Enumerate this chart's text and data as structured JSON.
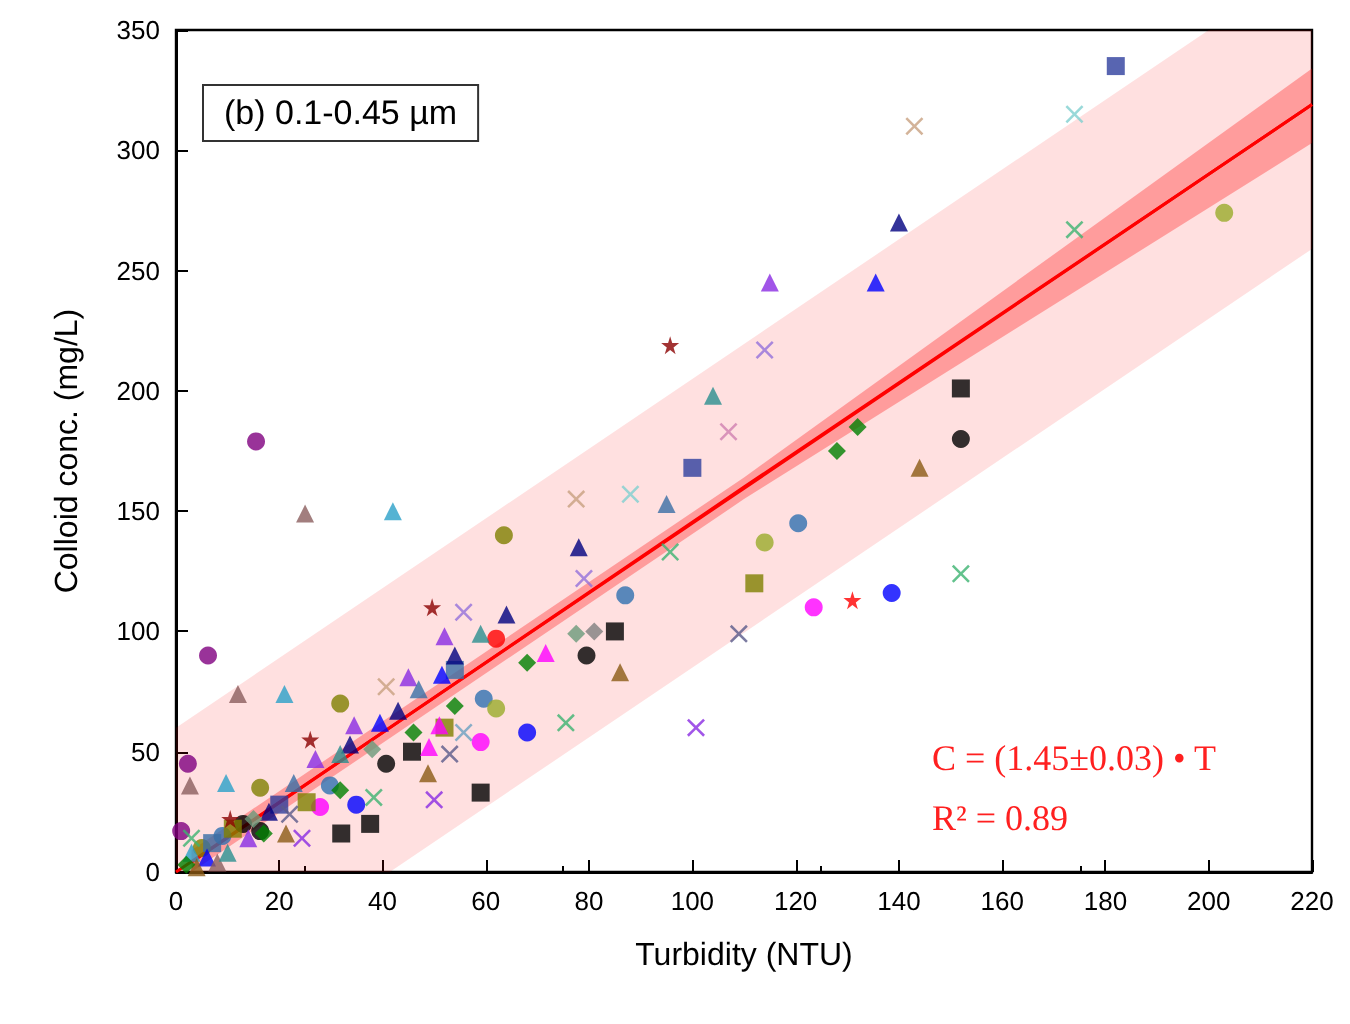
{
  "chart_data": {
    "type": "scatter",
    "xlabel": "Turbidity (NTU)",
    "ylabel": "Colloid conc. (mg/L)",
    "xlim": [
      0,
      220
    ],
    "xticks": [
      0,
      20,
      40,
      60,
      80,
      100,
      120,
      140,
      160,
      180,
      200,
      220
    ],
    "ylim": [
      0,
      350
    ],
    "yticks": [
      0,
      50,
      100,
      150,
      200,
      250,
      300,
      350
    ],
    "grid": false,
    "annotations": [
      "(b) 0.1-0.45 µm",
      "C = (1.45±0.03) • T",
      "R² = 0.89"
    ],
    "series": [
      {
        "type": "line",
        "color": "#ff0000",
        "line_style": "solid",
        "marker": "none",
        "x": [
          0,
          41.4,
          200,
          220
        ],
        "values": [
          0,
          60,
          290,
          319
        ],
        "lower": [
          0,
          0,
          230,
          259
        ],
        "upper": [
          60,
          120,
          350,
          350
        ]
      },
      {
        "type": "line",
        "color": "#ff0000",
        "line_style": "solid",
        "marker": "none",
        "x": [
          3,
          110,
          220
        ],
        "values": [
          4,
          160,
          319
        ],
        "lower": [
          0,
          155,
          303
        ],
        "upper": [
          9,
          164,
          334
        ]
      },
      {
        "marker": "circle",
        "x": [
          15.5,
          203,
          120.5,
          114,
          123.5,
          138.6,
          152,
          87,
          6.2,
          62,
          79.5,
          59.6,
          62,
          59,
          68,
          63.5,
          31.8,
          40.7,
          34.9,
          27.9,
          29.8,
          16.3,
          2.3,
          16.3,
          1,
          5,
          9,
          13
        ],
        "values": [
          179,
          274,
          145,
          137,
          110,
          116,
          180,
          115,
          90,
          97,
          90,
          72,
          68,
          54,
          58,
          140,
          70,
          45,
          28,
          27,
          36,
          17,
          45,
          35,
          17,
          10,
          15,
          20
        ],
        "colors": [
          "#800080",
          "#9aab2a",
          "#3070b0",
          "#9aab2a",
          "#ff00ff",
          "#0000ff",
          "#000000",
          "#3070b0",
          "#800080",
          "#ff0000",
          "#000000",
          "#3070b0",
          "#9aab2a",
          "#ff00ff",
          "#0000ff",
          "#808000",
          "#808000",
          "#000000",
          "#0000ff",
          "#ff00ff",
          "#3070b0",
          "#000000",
          "#800080",
          "#808000",
          "#800080",
          "#808000",
          "#3070b0",
          "#000000"
        ]
      },
      {
        "marker": "square",
        "x": [
          182,
          152,
          100,
          112,
          85,
          54,
          52,
          45.7,
          59,
          25.3,
          32,
          37.6,
          7,
          11,
          20
        ],
        "values": [
          335,
          201,
          168,
          120,
          100,
          84,
          60,
          50,
          33,
          29,
          16,
          20,
          12,
          18,
          28
        ],
        "colors": [
          "#2e3f9e",
          "#000000",
          "#2e3f9e",
          "#808000",
          "#000000",
          "#3a6ea5",
          "#808000",
          "#000000",
          "#000000",
          "#808000",
          "#000000",
          "#000000",
          "#3a6ea5",
          "#808000",
          "#2e3f9e"
        ]
      },
      {
        "marker": "triangle",
        "x": [
          104,
          140,
          115,
          135.5,
          144,
          95,
          25,
          42,
          78,
          64,
          12,
          21,
          52,
          59,
          86,
          71.6,
          54,
          45,
          47,
          51.5,
          43,
          51,
          34.5,
          39.5,
          33.7,
          31.8,
          49,
          48.8,
          21.3,
          27,
          2.7,
          9.7,
          22.8,
          3,
          6,
          8,
          10,
          14,
          18,
          4
        ],
        "values": [
          198,
          270,
          245,
          245,
          168,
          153,
          149,
          150,
          135,
          107,
          74,
          74,
          98,
          99,
          83,
          91,
          90,
          81,
          76,
          82,
          67,
          61,
          61,
          62,
          53,
          49,
          52,
          41,
          16,
          47,
          36,
          37,
          37,
          8,
          6,
          4,
          8,
          14,
          25,
          2
        ],
        "colors": [
          "#2a8f8f",
          "#000080",
          "#8a2be2",
          "#0000ff",
          "#8b5a14",
          "#3a6ea5",
          "#8b5e5e",
          "#2aa0c8",
          "#000080",
          "#000080",
          "#8b5e5e",
          "#2aa0c8",
          "#8a2be2",
          "#2a8f8f",
          "#8b5a14",
          "#ff00ff",
          "#000080",
          "#8a2be2",
          "#3a6ea5",
          "#0000ff",
          "#000080",
          "#ff00ff",
          "#8a2be2",
          "#0000ff",
          "#000080",
          "#2a8f8f",
          "#ff00ff",
          "#8b5a14",
          "#8b5a14",
          "#8a2be2",
          "#8b5e5e",
          "#2aa0c8",
          "#3a6ea5",
          "#2aa0c8",
          "#0000ff",
          "#8b5e5e",
          "#2a8f8f",
          "#8a2be2",
          "#000080",
          "#8b5a14"
        ]
      },
      {
        "marker": "diamond",
        "x": [
          132,
          128,
          77.5,
          81,
          68,
          54,
          38,
          46,
          31.8,
          15,
          2,
          17
        ],
        "values": [
          185,
          175,
          99,
          100,
          87,
          69,
          51,
          58,
          34,
          22,
          3,
          16
        ],
        "colors": [
          "#008000",
          "#008000",
          "#6b9a7a",
          "#808080",
          "#008000",
          "#008000",
          "#6b9a7a",
          "#008000",
          "#008000",
          "#6b9a7a",
          "#008000",
          "#008000"
        ]
      },
      {
        "marker": "star",
        "x": [
          95.7,
          131,
          49.6,
          26,
          10.5
        ],
        "values": [
          219,
          113,
          110,
          55,
          22
        ],
        "colors": [
          "#8b0000",
          "#ff0000",
          "#8b0000",
          "#8b0000",
          "#8b0000"
        ]
      },
      {
        "marker": "cross",
        "x": [
          143,
          174,
          174,
          114,
          107,
          152,
          109,
          100.7,
          95.7,
          77.5,
          88,
          79,
          55.7,
          40.7,
          55.7,
          75.5,
          53,
          50,
          38.3,
          24.4,
          22,
          3
        ],
        "values": [
          310,
          315,
          267,
          217,
          183,
          124,
          99,
          60,
          133,
          155,
          157,
          122,
          108,
          77,
          58,
          62,
          49,
          30,
          31,
          14,
          24,
          14
        ],
        "colors": [
          "#c8a080",
          "#80d0d0",
          "#3cb371",
          "#9370db",
          "#d080b0",
          "#3cb371",
          "#5a5a8a",
          "#8a2be2",
          "#3cb371",
          "#c8a080",
          "#80d0d0",
          "#9370db",
          "#9370db",
          "#c8a080",
          "#6aa0c0",
          "#3cb371",
          "#5a5a8a",
          "#8a2be2",
          "#3cb371",
          "#8a2be2",
          "#5a5a8a",
          "#3cb371"
        ]
      }
    ]
  }
}
